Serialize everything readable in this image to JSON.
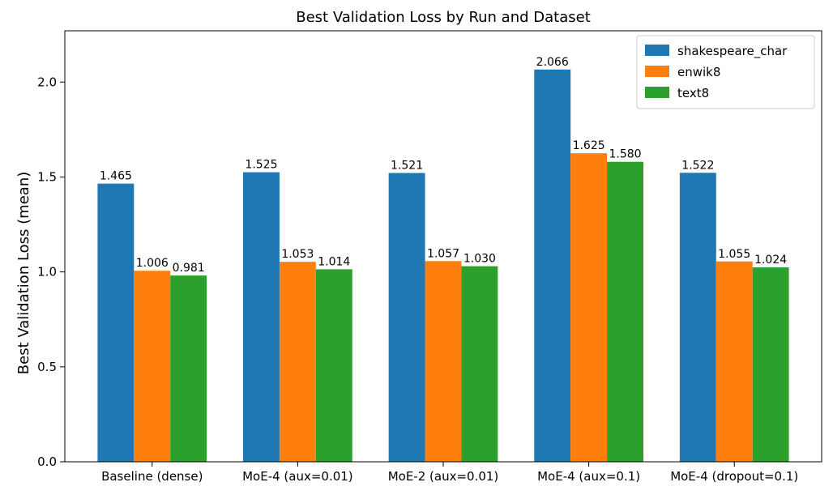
{
  "chart_data": {
    "type": "bar",
    "title": "Best Validation Loss by Run and Dataset",
    "xlabel": "",
    "ylabel": "Best Validation Loss (mean)",
    "ylim": [
      0,
      2.27
    ],
    "yticks": [
      "0.0",
      "0.5",
      "1.0",
      "1.5",
      "2.0"
    ],
    "ytick_values": [
      0,
      0.5,
      1.0,
      1.5,
      2.0
    ],
    "grid": false,
    "legend_position": "top-right",
    "categories": [
      "Baseline (dense)",
      "MoE-4 (aux=0.01)",
      "MoE-2 (aux=0.01)",
      "MoE-4 (aux=0.1)",
      "MoE-4 (dropout=0.1)"
    ],
    "series": [
      {
        "name": "shakespeare_char",
        "color": "#1f77b4",
        "values": [
          1.465,
          1.525,
          1.521,
          2.066,
          1.522
        ],
        "labels": [
          "1.465",
          "1.525",
          "1.521",
          "2.066",
          "1.522"
        ]
      },
      {
        "name": "enwik8",
        "color": "#ff7f0e",
        "values": [
          1.006,
          1.053,
          1.057,
          1.625,
          1.055
        ],
        "labels": [
          "1.006",
          "1.053",
          "1.057",
          "1.625",
          "1.055"
        ]
      },
      {
        "name": "text8",
        "color": "#2ca02c",
        "values": [
          0.981,
          1.014,
          1.03,
          1.58,
          1.024
        ],
        "labels": [
          "0.981",
          "1.014",
          "1.030",
          "1.580",
          "1.024"
        ]
      }
    ]
  }
}
